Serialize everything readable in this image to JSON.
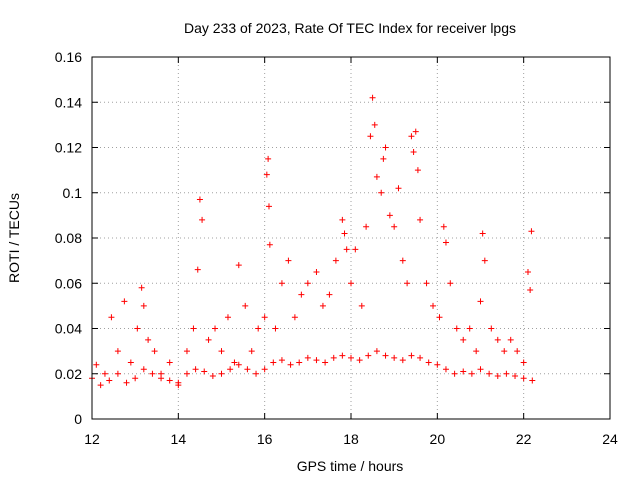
{
  "chart_data": {
    "type": "scatter",
    "title": "Day 233 of 2023, Rate Of TEC Index for receiver lpgs",
    "xlabel": "GPS time / hours",
    "ylabel": "ROTI / TECUs",
    "xlim": [
      12,
      24
    ],
    "ylim": [
      0,
      0.16
    ],
    "xticks": [
      "12",
      "14",
      "16",
      "18",
      "20",
      "22",
      "24"
    ],
    "yticks": [
      "0",
      "0.02",
      "0.04",
      "0.06",
      "0.08",
      "0.1",
      "0.12",
      "0.14",
      "0.16"
    ],
    "grid": true,
    "marker": "plus",
    "color": "#ff0000",
    "series": [
      {
        "x": [
          12.1,
          12.3,
          12.45,
          12.6,
          12.75,
          12.9,
          13.05,
          13.15,
          13.2,
          13.3,
          13.45,
          13.6,
          13.8,
          14.0,
          14.2,
          14.35,
          14.45,
          14.5,
          14.55,
          14.7,
          14.85,
          15.0,
          15.15,
          15.3,
          15.4,
          15.55,
          15.7,
          15.85,
          16.0,
          16.05,
          16.08,
          16.1,
          16.12,
          16.25,
          16.4,
          16.55,
          16.7,
          16.85,
          17.0,
          17.2,
          17.35,
          17.5,
          17.65,
          17.8,
          17.85,
          17.9,
          18.0,
          18.1,
          18.25,
          18.35,
          18.45,
          18.5,
          18.55,
          18.6,
          18.7,
          18.75,
          18.8,
          18.9,
          19.0,
          19.1,
          19.2,
          19.3,
          19.4,
          19.45,
          19.5,
          19.55,
          19.6,
          19.75,
          19.9,
          20.05,
          20.15,
          20.2,
          20.3,
          20.45,
          20.6,
          20.75,
          20.9,
          21.0,
          21.05,
          21.1,
          21.25,
          21.4,
          21.55,
          21.7,
          21.85,
          22.0,
          22.1,
          22.15,
          22.18
        ],
        "y": [
          0.024,
          0.02,
          0.045,
          0.03,
          0.052,
          0.025,
          0.04,
          0.058,
          0.05,
          0.035,
          0.03,
          0.02,
          0.025,
          0.015,
          0.03,
          0.04,
          0.066,
          0.097,
          0.088,
          0.035,
          0.04,
          0.03,
          0.045,
          0.025,
          0.068,
          0.05,
          0.03,
          0.04,
          0.045,
          0.108,
          0.115,
          0.094,
          0.077,
          0.04,
          0.06,
          0.07,
          0.045,
          0.055,
          0.06,
          0.065,
          0.05,
          0.055,
          0.07,
          0.088,
          0.082,
          0.075,
          0.06,
          0.075,
          0.05,
          0.085,
          0.125,
          0.142,
          0.13,
          0.107,
          0.1,
          0.115,
          0.12,
          0.09,
          0.085,
          0.102,
          0.07,
          0.06,
          0.125,
          0.118,
          0.127,
          0.11,
          0.088,
          0.06,
          0.05,
          0.045,
          0.085,
          0.078,
          0.06,
          0.04,
          0.035,
          0.04,
          0.03,
          0.052,
          0.082,
          0.07,
          0.04,
          0.035,
          0.03,
          0.035,
          0.03,
          0.025,
          0.065,
          0.057,
          0.083
        ]
      },
      {
        "x": [
          12.0,
          12.2,
          12.4,
          12.6,
          12.8,
          13.0,
          13.2,
          13.4,
          13.6,
          13.8,
          14.0,
          14.2,
          14.4,
          14.6,
          14.8,
          15.0,
          15.2,
          15.4,
          15.6,
          15.8,
          16.0,
          16.2,
          16.4,
          16.6,
          16.8,
          17.0,
          17.2,
          17.4,
          17.6,
          17.8,
          18.0,
          18.2,
          18.4,
          18.6,
          18.8,
          19.0,
          19.2,
          19.4,
          19.6,
          19.8,
          20.0,
          20.2,
          20.4,
          20.6,
          20.8,
          21.0,
          21.2,
          21.4,
          21.6,
          21.8,
          22.0,
          22.2
        ],
        "y": [
          0.018,
          0.015,
          0.017,
          0.02,
          0.016,
          0.018,
          0.022,
          0.02,
          0.018,
          0.017,
          0.016,
          0.02,
          0.022,
          0.021,
          0.019,
          0.02,
          0.022,
          0.024,
          0.022,
          0.02,
          0.022,
          0.025,
          0.026,
          0.024,
          0.025,
          0.027,
          0.026,
          0.025,
          0.027,
          0.028,
          0.027,
          0.026,
          0.028,
          0.03,
          0.028,
          0.027,
          0.026,
          0.028,
          0.027,
          0.025,
          0.024,
          0.022,
          0.02,
          0.021,
          0.02,
          0.022,
          0.02,
          0.019,
          0.02,
          0.019,
          0.018,
          0.017
        ]
      }
    ]
  }
}
